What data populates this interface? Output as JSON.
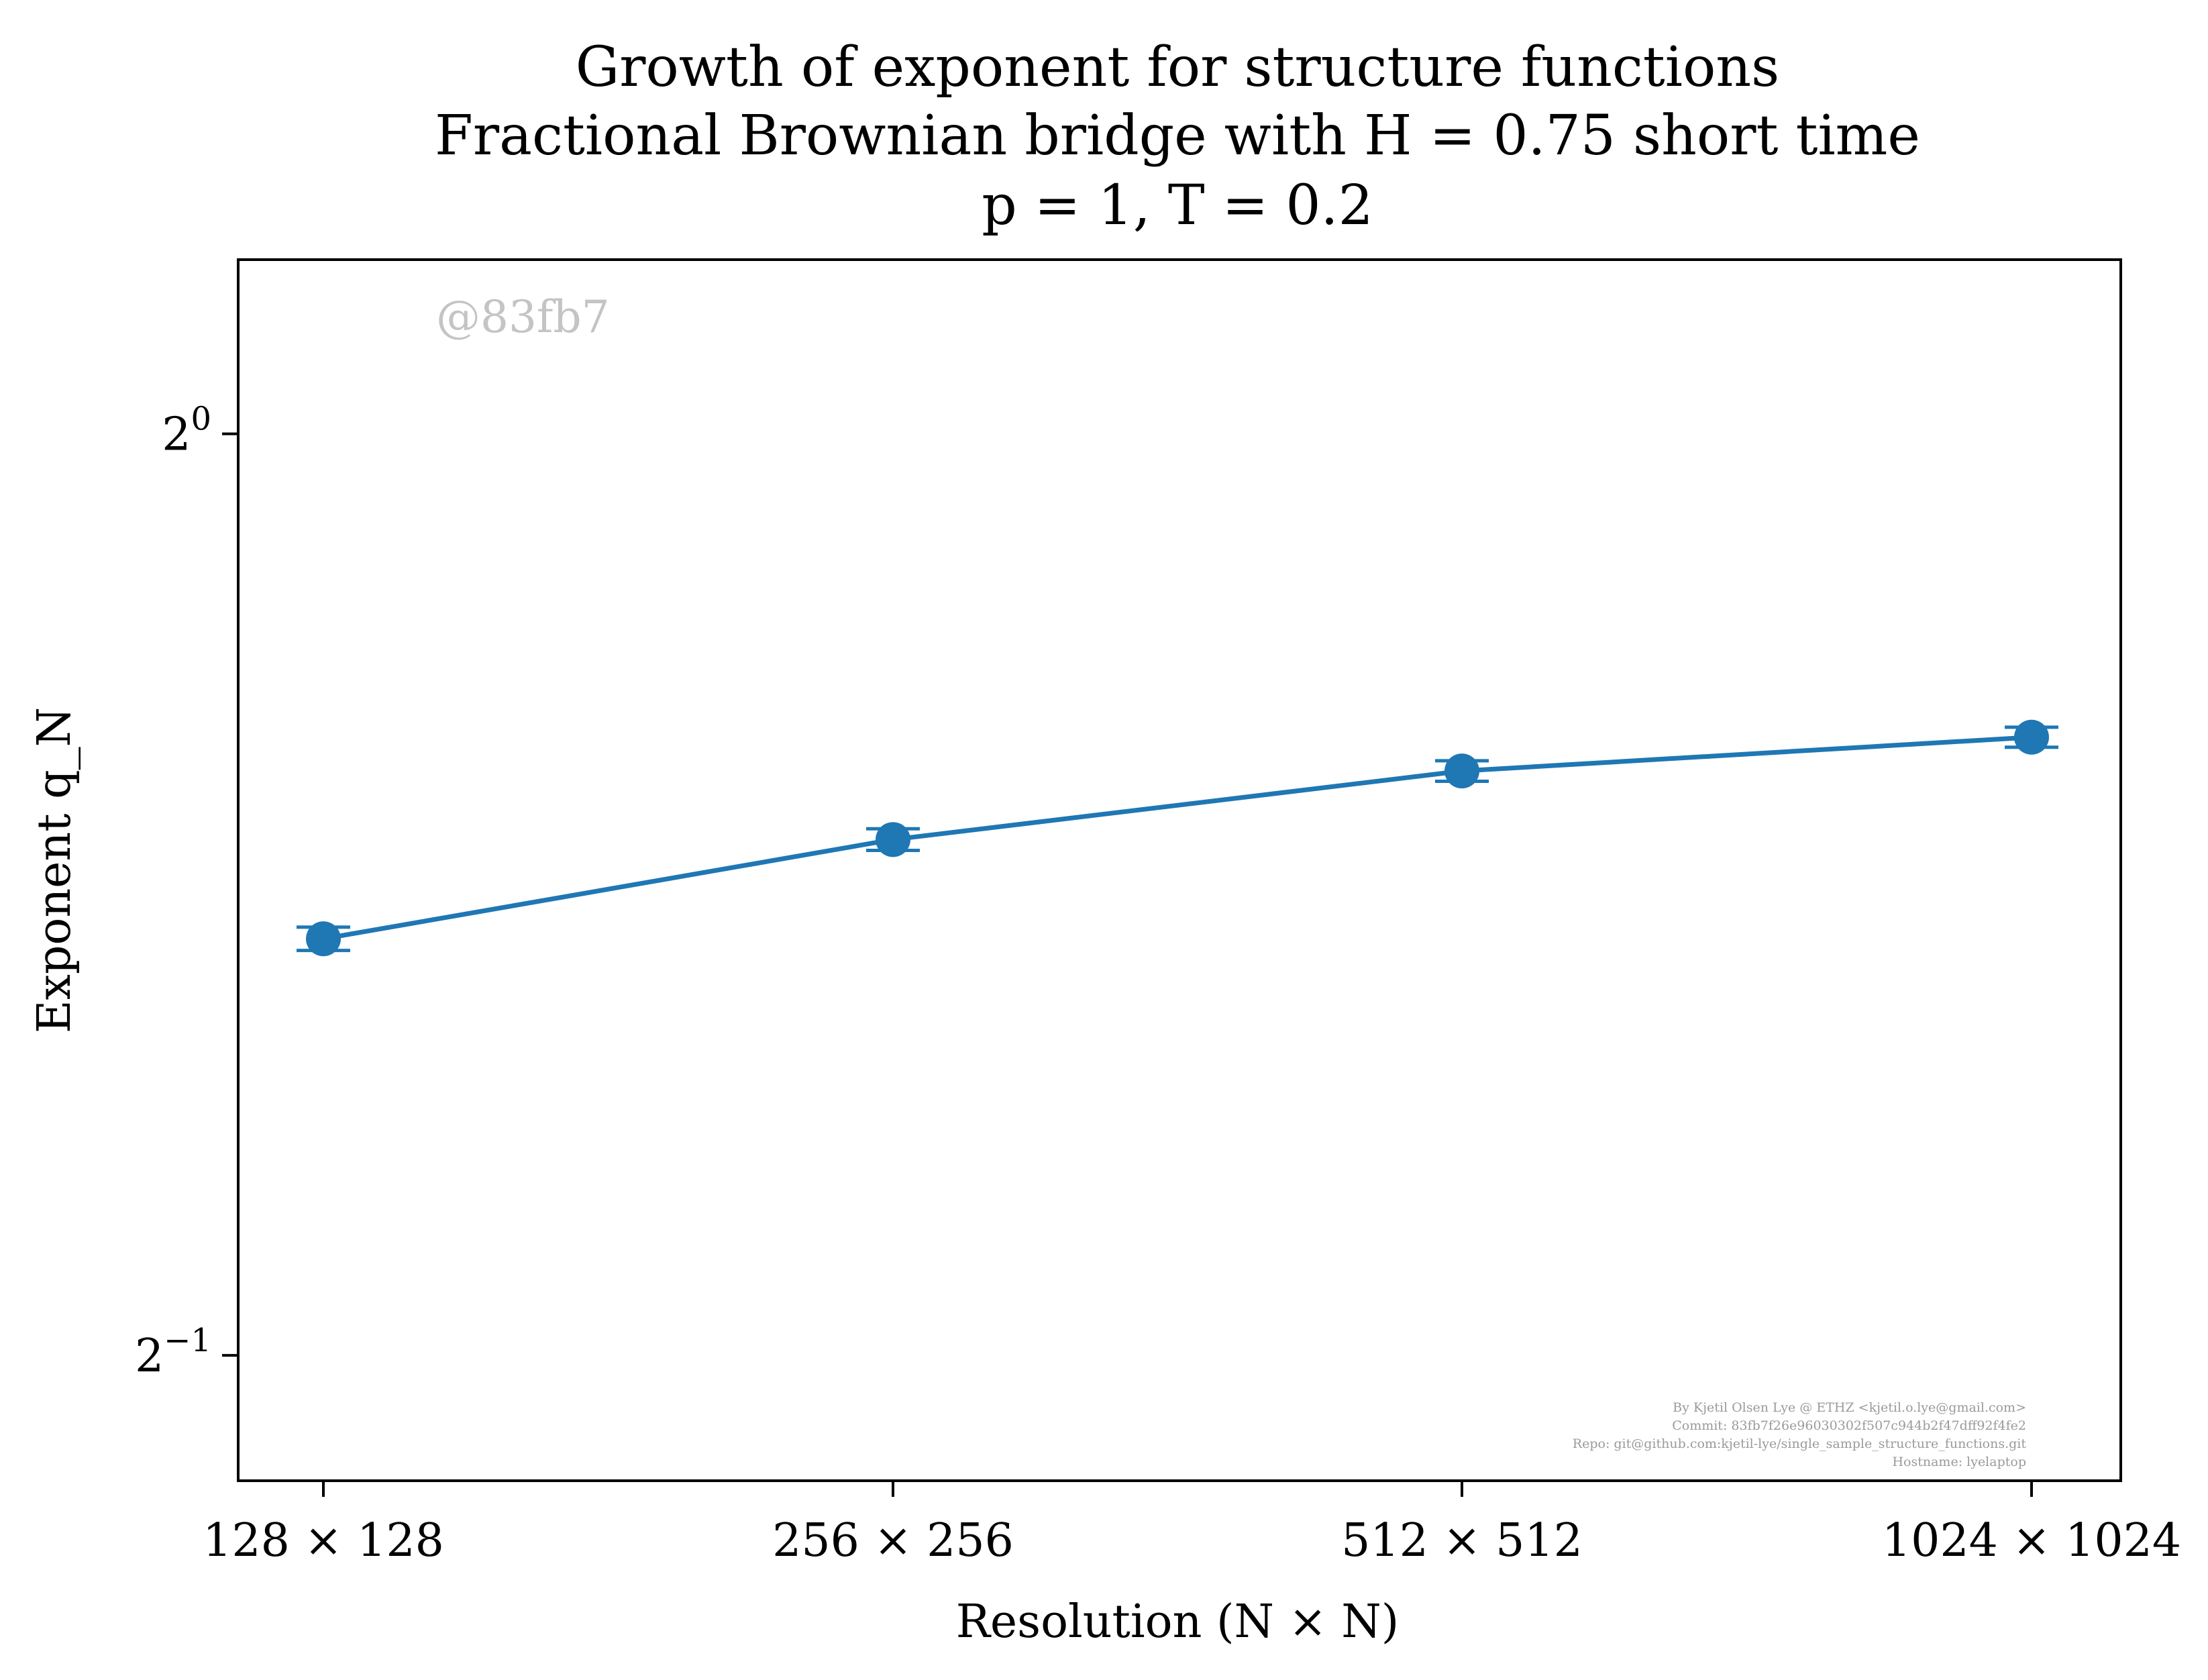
{
  "chart_data": {
    "type": "line",
    "title_lines": [
      "Growth of exponent for structure functions",
      "Fractional Brownian bridge with H = 0.75 short time",
      "p = 1, T = 0.2"
    ],
    "xlabel": "Resolution (N × N)",
    "ylabel": "Exponent q_N",
    "categories": [
      "128 × 128",
      "256 × 256",
      "512 × 512",
      "1024 × 1024"
    ],
    "y_scale": "log2",
    "ylim": [
      0.455,
      1.14
    ],
    "y_ticks": [
      {
        "value": 1.0,
        "base": "2",
        "exp": "0"
      },
      {
        "value": 0.5,
        "base": "2",
        "exp": "−1"
      }
    ],
    "series": [
      {
        "values": [
          0.684,
          0.737,
          0.776,
          0.796
        ],
        "yerr": [
          0.006,
          0.006,
          0.006,
          0.006
        ],
        "color": "#1f77b4",
        "marker": "circle",
        "errorbars": true
      }
    ],
    "grid": false,
    "legend": false,
    "watermark": "@83fb7",
    "credit_lines": [
      "By Kjetil Olsen Lye @ ETHZ <kjetil.o.lye@gmail.com>",
      "Commit: 83fb7f26e96030302f507c944b2f47dff92f4fe2",
      "Repo: git@github.com:kjetil-lye/single_sample_structure_functions.git",
      "Hostname: lyelaptop"
    ]
  }
}
